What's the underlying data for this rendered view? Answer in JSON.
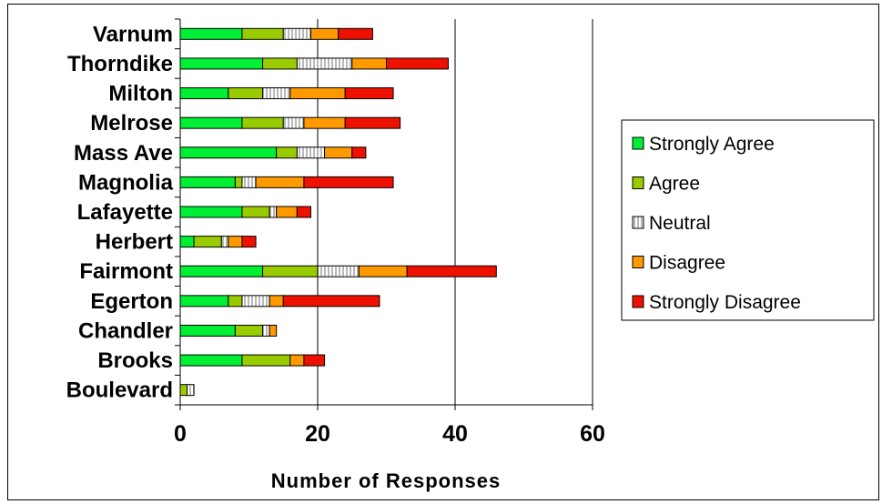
{
  "chart_data": {
    "type": "bar",
    "orientation": "horizontal",
    "stacked": true,
    "categories": [
      "Varnum",
      "Thorndike",
      "Milton",
      "Melrose",
      "Mass Ave",
      "Magnolia",
      "Lafayette",
      "Herbert",
      "Fairmont",
      "Egerton",
      "Chandler",
      "Brooks",
      "Boulevard"
    ],
    "series": [
      {
        "name": "Strongly Agree",
        "color": "#00ee33",
        "values": [
          9,
          12,
          7,
          9,
          14,
          8,
          9,
          2,
          12,
          7,
          8,
          9,
          0
        ]
      },
      {
        "name": "Agree",
        "color": "#99cc00",
        "values": [
          6,
          5,
          5,
          6,
          3,
          1,
          4,
          4,
          8,
          2,
          4,
          7,
          1
        ]
      },
      {
        "name": "Neutral",
        "color": "#e8e8e8",
        "pattern": "vertical-stripes",
        "values": [
          4,
          8,
          4,
          3,
          4,
          2,
          1,
          1,
          6,
          4,
          1,
          0,
          1
        ]
      },
      {
        "name": "Disagree",
        "color": "#ff9900",
        "values": [
          4,
          5,
          8,
          6,
          4,
          7,
          3,
          2,
          7,
          2,
          1,
          2,
          0
        ]
      },
      {
        "name": "Strongly Disagree",
        "color": "#ee1100",
        "values": [
          5,
          9,
          7,
          8,
          2,
          13,
          2,
          2,
          13,
          14,
          0,
          3,
          0
        ]
      }
    ],
    "xlabel": "Number of Responses",
    "ylabel": "",
    "xlim": [
      0,
      60
    ],
    "xticks": [
      0,
      20,
      40,
      60
    ],
    "grid": "vertical major gridlines",
    "legend": "right"
  }
}
